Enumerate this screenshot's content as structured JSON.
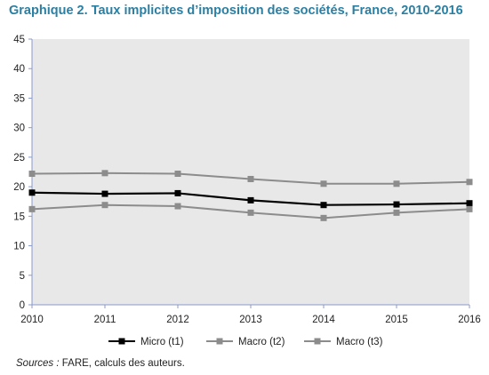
{
  "title": "Graphique 2. Taux implicites d’imposition des sociétés, France, 2010-2016",
  "source": {
    "label": "Sources :",
    "text": " FARE, calculs des auteurs."
  },
  "chart_data": {
    "type": "line",
    "x": [
      2010,
      2011,
      2012,
      2013,
      2014,
      2015,
      2016
    ],
    "ylim": [
      0,
      45
    ],
    "yticks": [
      0,
      5,
      10,
      15,
      20,
      25,
      30,
      35,
      40,
      45
    ],
    "grid": false,
    "legend": "bottom",
    "series": [
      {
        "name": "Micro (t1)",
        "color": "#000000",
        "values": [
          19.0,
          18.8,
          18.9,
          17.7,
          16.9,
          17.0,
          17.2
        ]
      },
      {
        "name": "Macro (t2)",
        "color": "#8c8c8c",
        "values": [
          16.2,
          16.9,
          16.7,
          15.6,
          14.7,
          15.6,
          16.2
        ]
      },
      {
        "name": "Macro (t3)",
        "color": "#8c8c8c",
        "values": [
          22.2,
          22.3,
          22.2,
          21.3,
          20.5,
          20.5,
          20.8
        ]
      }
    ]
  }
}
